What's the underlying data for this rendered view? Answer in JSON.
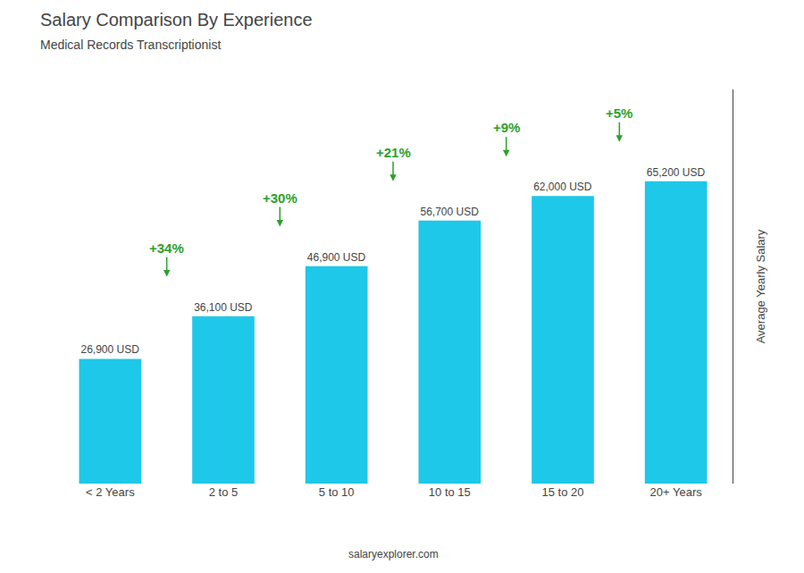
{
  "chart_data": {
    "type": "bar",
    "title": "Salary Comparison By Experience",
    "subtitle": "Medical Records Transcriptionist",
    "categories": [
      "< 2 Years",
      "2 to 5",
      "5 to 10",
      "10 to 15",
      "15 to 20",
      "20+ Years"
    ],
    "values": [
      26900,
      36100,
      46900,
      56700,
      62000,
      65200
    ],
    "value_labels": [
      "26,900 USD",
      "36,100 USD",
      "46,900 USD",
      "56,700 USD",
      "62,000 USD",
      "65,200 USD"
    ],
    "data_labels": true,
    "annotations": [
      "+34%",
      "+30%",
      "+21%",
      "+9%",
      "+5%"
    ],
    "ylabel": "Average Yearly Salary",
    "footer": "salaryexplorer.com",
    "color": "#1EC8E8",
    "ylim": [
      0,
      85000
    ],
    "yticks": [],
    "tick_labels": "x",
    "grid": false
  }
}
